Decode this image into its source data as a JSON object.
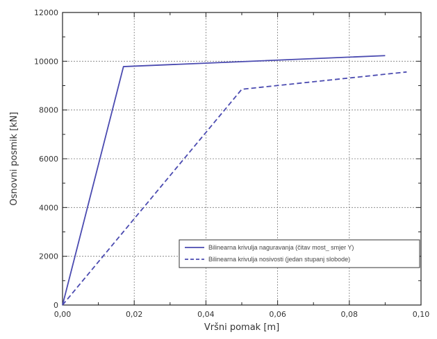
{
  "chart_data": {
    "type": "line",
    "title": "",
    "xlabel": "Vršni pomak [m]",
    "ylabel": "Osnovni posmik [kN]",
    "xlim": [
      0,
      0.1
    ],
    "ylim": [
      0,
      12000
    ],
    "x_ticks": [
      "0,00",
      "0,02",
      "0,04",
      "0,06",
      "0,08",
      "0,10"
    ],
    "y_ticks": [
      "0",
      "2000",
      "4000",
      "6000",
      "8000",
      "10000",
      "12000"
    ],
    "grid": true,
    "legend_position": "bottom-right",
    "series": [
      {
        "name": "Bilinearna krivulja naguravanja (čitav most_ smjer Y)",
        "style": "solid",
        "color": "#4a4ab0",
        "points": [
          [
            0,
            0
          ],
          [
            0.017,
            9780
          ],
          [
            0.09,
            10230
          ]
        ]
      },
      {
        "name": "Bilinearna krivulja nosivosti (jedan stupanj slobode)",
        "style": "dashed",
        "color": "#4a4ab0",
        "points": [
          [
            0,
            0
          ],
          [
            0.05,
            8850
          ],
          [
            0.096,
            9560
          ]
        ]
      }
    ]
  }
}
